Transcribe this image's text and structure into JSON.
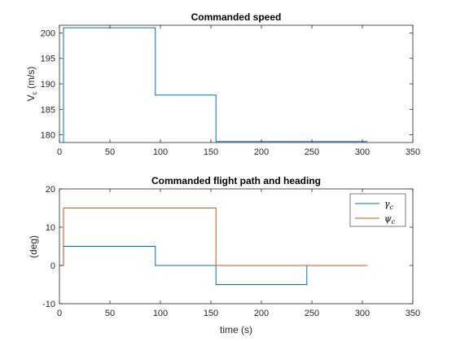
{
  "chart_data": [
    {
      "type": "line",
      "title": "Commanded speed",
      "xlabel": "",
      "ylabel": "V_c (m/s)",
      "xlim": [
        0,
        350
      ],
      "ylim": [
        178.5,
        201.5
      ],
      "xticks": [
        0,
        50,
        100,
        150,
        200,
        250,
        300,
        350
      ],
      "yticks": [
        180,
        185,
        190,
        195,
        200
      ],
      "grid": false,
      "series": [
        {
          "color": "#0072BD",
          "x": [
            0,
            4,
            4,
            95,
            95,
            155,
            155,
            305
          ],
          "y": [
            178.5,
            178.5,
            201,
            201,
            187.8,
            187.8,
            178.7,
            178.7
          ]
        }
      ]
    },
    {
      "type": "line",
      "title": "Commanded flight path and heading",
      "xlabel": "time (s)",
      "ylabel": "(deg)",
      "xlim": [
        0,
        350
      ],
      "ylim": [
        -10,
        20
      ],
      "xticks": [
        0,
        50,
        100,
        150,
        200,
        250,
        300,
        350
      ],
      "yticks": [
        -10,
        0,
        10,
        20
      ],
      "grid": false,
      "legend": "top-right",
      "series": [
        {
          "name": "γc",
          "color": "#0072BD",
          "x": [
            0,
            4,
            4,
            95,
            95,
            155,
            155,
            245,
            245
          ],
          "y": [
            0,
            0,
            5,
            5,
            0,
            0,
            -5,
            -5,
            0
          ]
        },
        {
          "name": "ψc",
          "color": "#D95319",
          "x": [
            0,
            4,
            4,
            155,
            155,
            305
          ],
          "y": [
            0,
            0,
            15,
            15,
            0,
            0
          ]
        }
      ]
    }
  ]
}
